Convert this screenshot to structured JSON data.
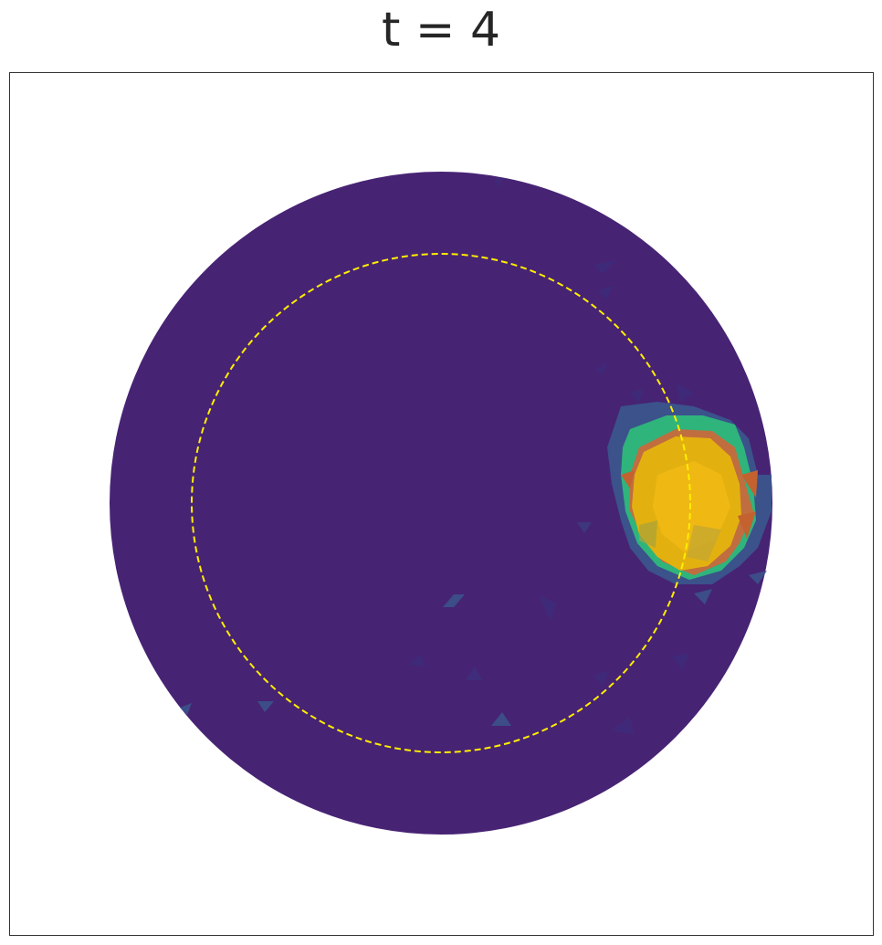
{
  "title": "t = 4"
}
